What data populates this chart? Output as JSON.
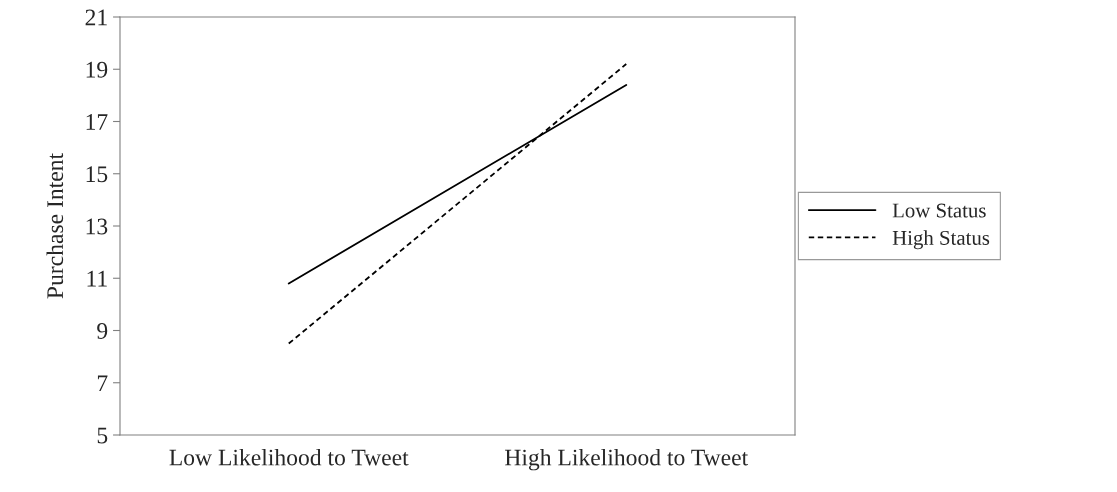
{
  "chart_data": {
    "type": "line",
    "ylabel": "Purchase Intent",
    "categories": [
      "Low Likelihood to Tweet",
      "High Likelihood to Tweet"
    ],
    "series": [
      {
        "name": "Low Status",
        "color": "#000000",
        "values": [
          10.8,
          18.4
        ],
        "line_style": "solid"
      },
      {
        "name": "High Status",
        "color": "#000000",
        "values": [
          8.5,
          19.2
        ],
        "line_style": "dashed"
      }
    ],
    "ylim": [
      5,
      21
    ],
    "yticks": [
      5,
      7,
      9,
      11,
      13,
      15,
      17,
      19,
      21
    ],
    "legend": "right",
    "marker": "none"
  }
}
